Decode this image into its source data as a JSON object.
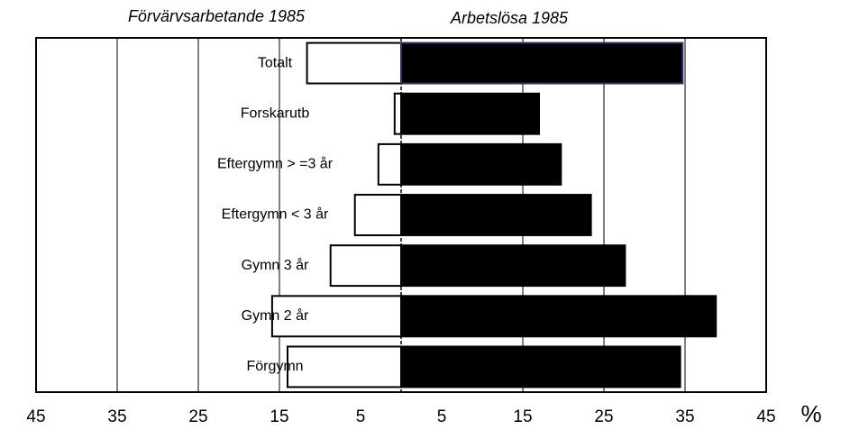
{
  "chart_data": {
    "type": "butterfly",
    "categories": [
      "Totalt",
      "Forskarutb",
      "Eftergymn  > =3 år",
      "Eftergymn  < 3 år",
      "Gymn 3 år",
      "Gymn 2 år",
      "Förgymn"
    ],
    "series": [
      {
        "name": "Förvärvsarbetande 1985",
        "color": "#ffffff",
        "values": [
          -11.6,
          -0.8,
          -2.8,
          -5.7,
          -8.7,
          -15.9,
          -14.0
        ]
      },
      {
        "name": "Arbetslösa 1985",
        "color": "#000000",
        "values": [
          34.7,
          17.0,
          19.7,
          23.4,
          27.6,
          38.8,
          34.4
        ]
      }
    ],
    "xlabel": "%",
    "xlim": [
      -45,
      45
    ],
    "xticks": [
      {
        "value": -45,
        "label": "45"
      },
      {
        "value": -35,
        "label": "35"
      },
      {
        "value": -25,
        "label": "25"
      },
      {
        "value": -15,
        "label": "15"
      },
      {
        "value": -5,
        "label": "5"
      },
      5,
      15,
      25,
      35,
      45
    ],
    "grid": true
  }
}
